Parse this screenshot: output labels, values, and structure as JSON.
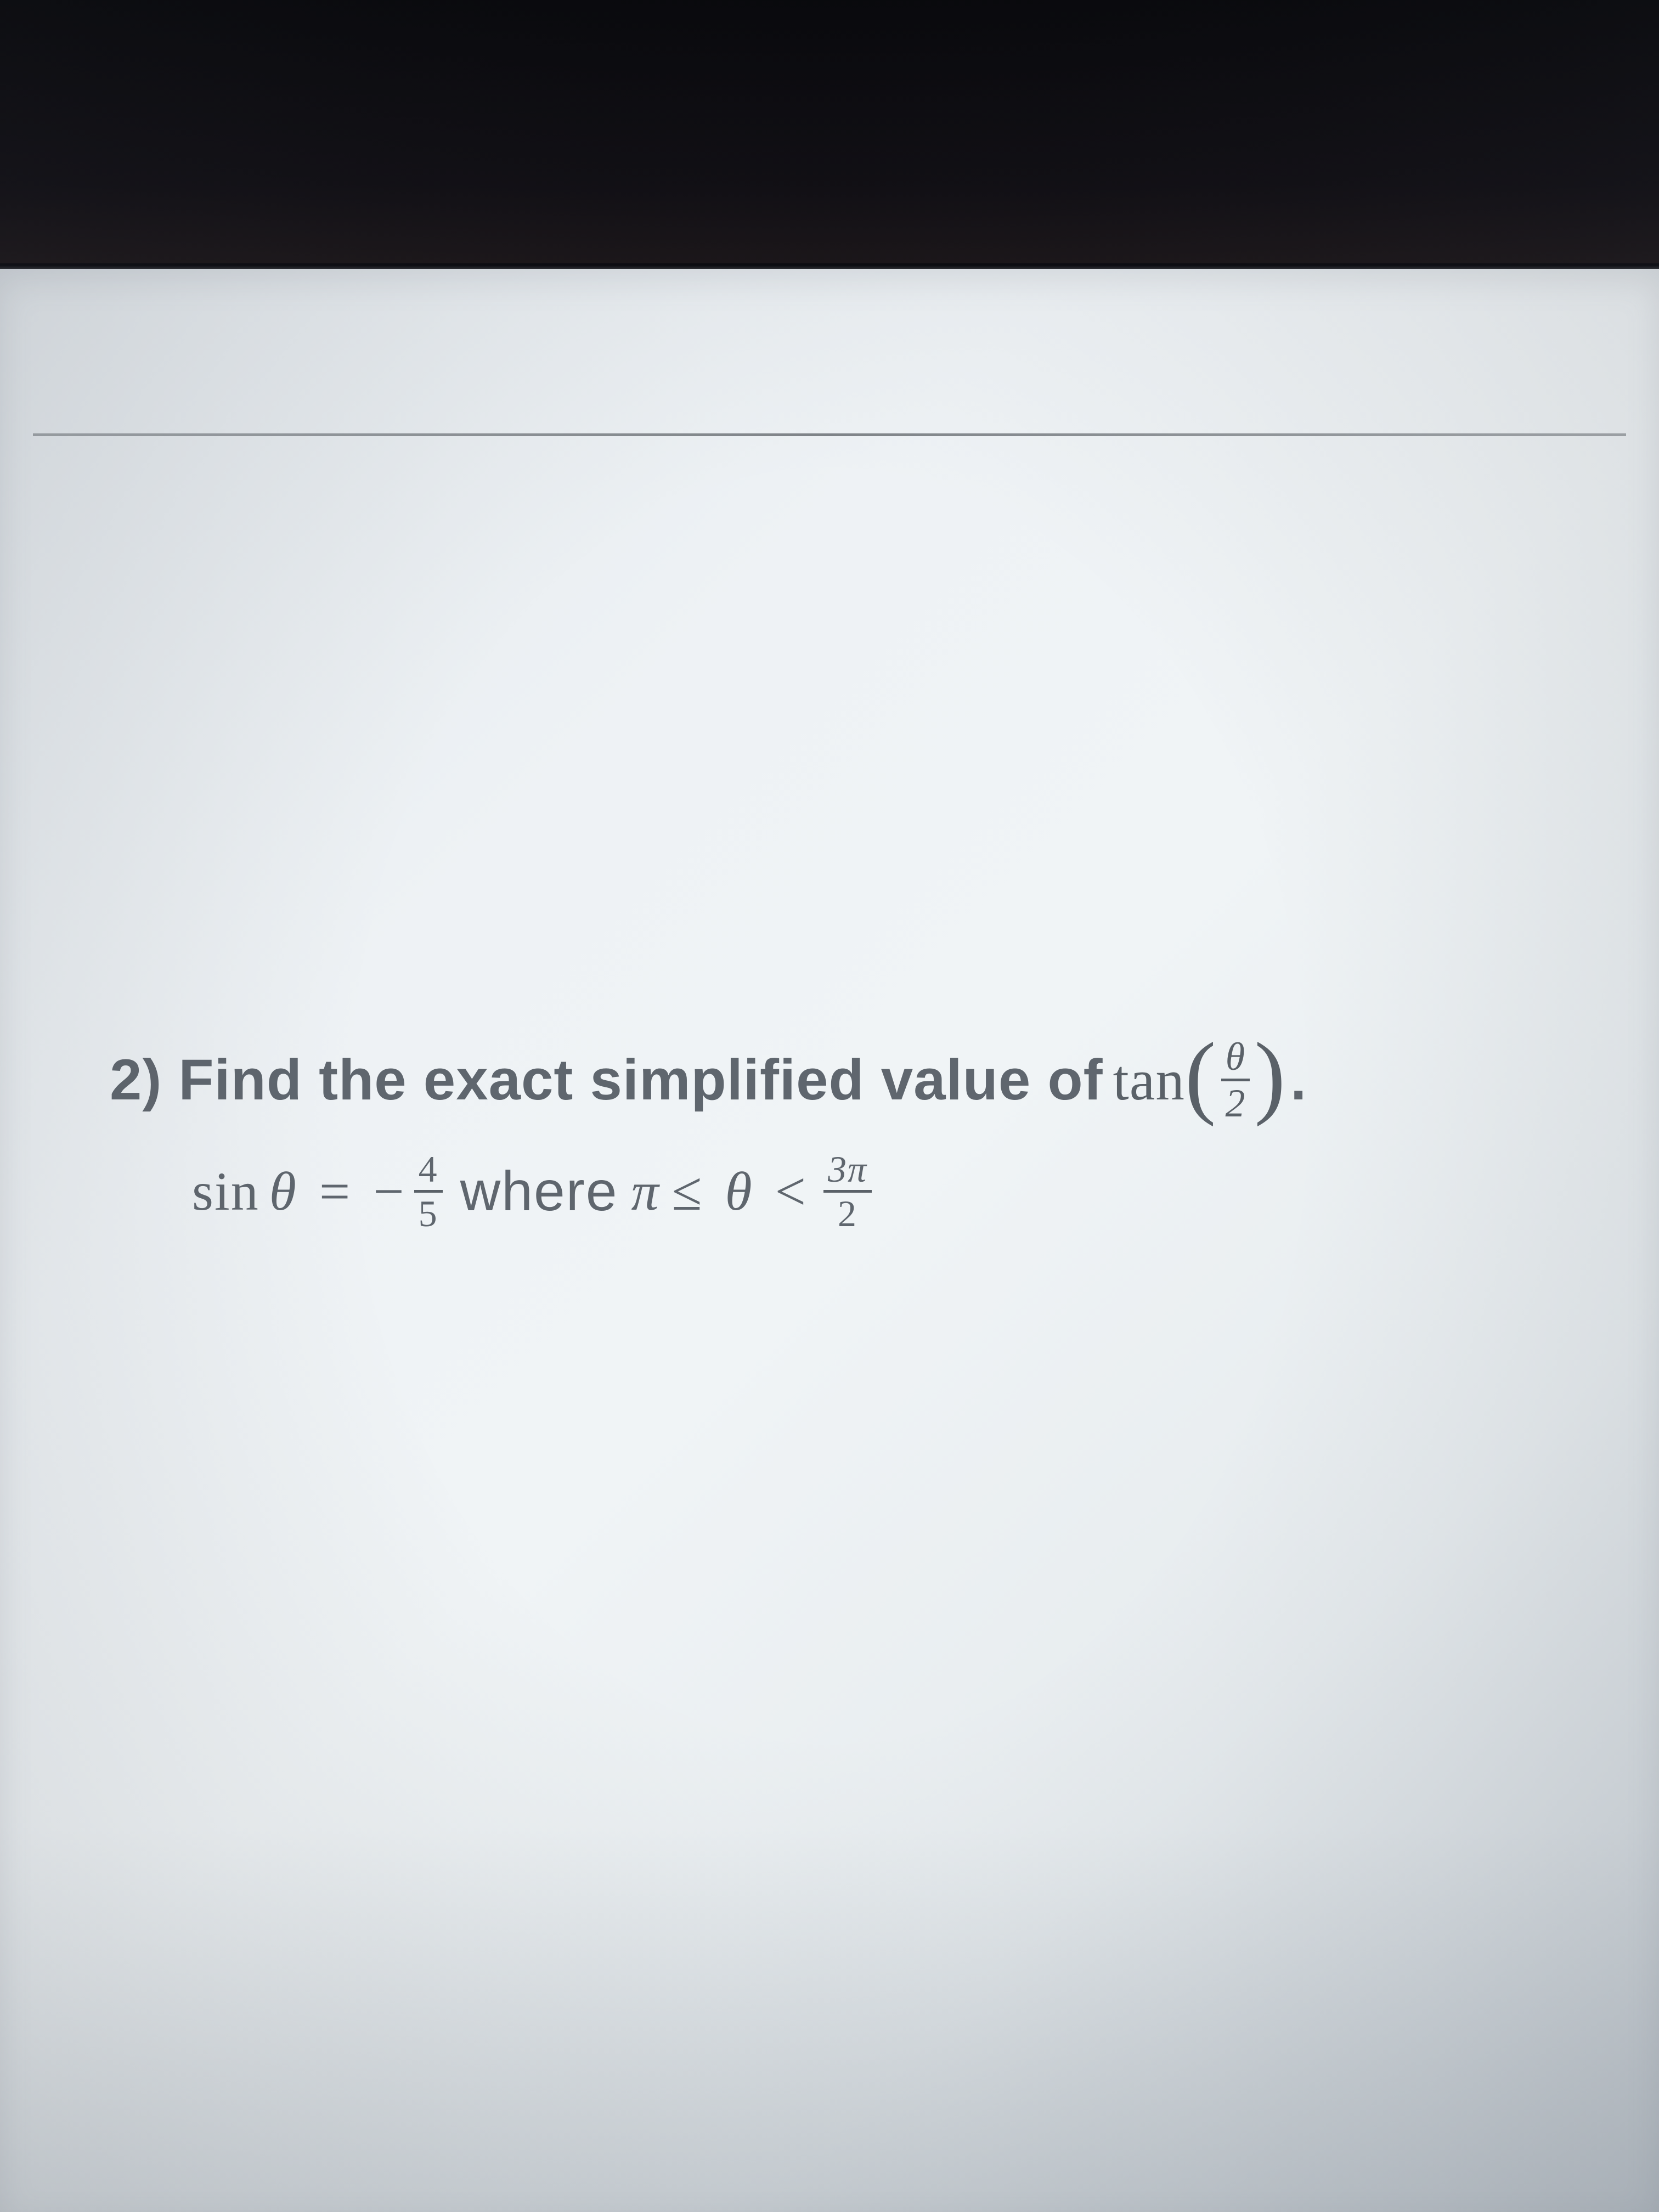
{
  "problem": {
    "number": "2)",
    "text_part1": "Find the exact simplified value of",
    "func": "tan",
    "frac_arg": {
      "num": "θ",
      "den": "2"
    },
    "period": "."
  },
  "condition": {
    "sin_label": "sin",
    "theta1": "θ",
    "equals": "=",
    "minus": "−",
    "frac1": {
      "num": "4",
      "den": "5"
    },
    "where": "where",
    "pi1": "π",
    "leq": "≤",
    "theta2": "θ",
    "lt": "<",
    "frac2": {
      "num": "3π",
      "den": "2"
    }
  },
  "colors": {
    "text": "#5f666e",
    "dark_bg": "#0a0a0f",
    "screen_bg": "#eef2f5",
    "divider": "#5a6168"
  }
}
